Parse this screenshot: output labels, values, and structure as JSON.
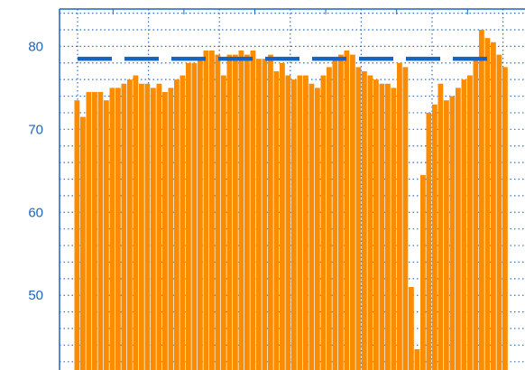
{
  "chart_data": {
    "type": "bar",
    "ylim": [
      41,
      84.5
    ],
    "grid": true,
    "ytick_values": [
      50,
      60,
      70,
      80
    ],
    "ytick_labels": [
      "50",
      "60",
      "70",
      "80"
    ],
    "reference_line": {
      "y": 78.5,
      "style": "dashed"
    },
    "series": [
      {
        "values": [
          73.5,
          71.5,
          74.5,
          74.5,
          74.5,
          73.5,
          75.0,
          75.0,
          75.5,
          76.0,
          76.5,
          75.5,
          75.5,
          75.0,
          75.5,
          74.5,
          75.0,
          76.0,
          76.5,
          78.0,
          78.0,
          78.5,
          79.5,
          79.5,
          79.0,
          76.5,
          79.0,
          79.0,
          79.5,
          79.0,
          79.5,
          78.5,
          78.5,
          79.0,
          77.0,
          78.0,
          76.5,
          76.0,
          76.5,
          76.5,
          75.5,
          75.0,
          76.5,
          77.5,
          78.5,
          79.0,
          79.5,
          79.0,
          77.5,
          77.0,
          76.5,
          76.0,
          75.5,
          75.5,
          75.0,
          78.0,
          77.5,
          51.0,
          43.5,
          64.5,
          72.0,
          73.0,
          75.5,
          73.5,
          74.0,
          75.0,
          76.0,
          76.5,
          78.5,
          82.0,
          81.0,
          80.5,
          79.0,
          77.5
        ]
      }
    ]
  },
  "colors": {
    "bar": "#fb8c00",
    "reference_line": "#1565c0",
    "grid": "#1e64be",
    "axis": "#1e64be",
    "tick_label": "#1e64be"
  }
}
